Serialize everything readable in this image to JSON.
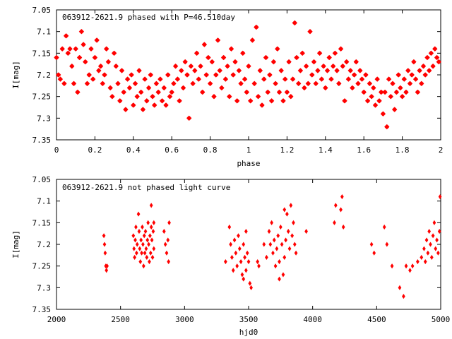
{
  "chart_data": [
    {
      "type": "scatter",
      "title": "063912-2621.9 phased with P=46.510day",
      "xlabel": "phase",
      "ylabel": "I[mag]",
      "xlim": [
        0,
        2
      ],
      "ylim": [
        7.35,
        7.05
      ],
      "y_inverted": true,
      "xticks": [
        "0",
        "0.2",
        "0.4",
        "0.6",
        "0.8",
        "1",
        "1.2",
        "1.4",
        "1.6",
        "1.8",
        "2"
      ],
      "yticks": [
        "7.05",
        "7.1",
        "7.15",
        "7.2",
        "7.25",
        "7.3",
        "7.35"
      ],
      "marker": "star",
      "color": "#ff0000",
      "points": [
        [
          0.0,
          7.16
        ],
        [
          0.01,
          7.2
        ],
        [
          0.02,
          7.21
        ],
        [
          0.03,
          7.14
        ],
        [
          0.04,
          7.22
        ],
        [
          0.05,
          7.11
        ],
        [
          0.06,
          7.15
        ],
        [
          0.07,
          7.14
        ],
        [
          0.08,
          7.18
        ],
        [
          0.09,
          7.22
        ],
        [
          0.1,
          7.14
        ],
        [
          0.11,
          7.24
        ],
        [
          0.12,
          7.16
        ],
        [
          0.13,
          7.1
        ],
        [
          0.14,
          7.13
        ],
        [
          0.15,
          7.17
        ],
        [
          0.16,
          7.22
        ],
        [
          0.17,
          7.2
        ],
        [
          0.18,
          7.14
        ],
        [
          0.19,
          7.21
        ],
        [
          0.2,
          7.16
        ],
        [
          0.21,
          7.12
        ],
        [
          0.22,
          7.19
        ],
        [
          0.23,
          7.18
        ],
        [
          0.24,
          7.22
        ],
        [
          0.25,
          7.2
        ],
        [
          0.26,
          7.14
        ],
        [
          0.27,
          7.17
        ],
        [
          0.28,
          7.23
        ],
        [
          0.29,
          7.25
        ],
        [
          0.3,
          7.15
        ],
        [
          0.31,
          7.18
        ],
        [
          0.32,
          7.22
        ],
        [
          0.33,
          7.26
        ],
        [
          0.34,
          7.19
        ],
        [
          0.35,
          7.24
        ],
        [
          0.36,
          7.28
        ],
        [
          0.37,
          7.21
        ],
        [
          0.38,
          7.23
        ],
        [
          0.39,
          7.2
        ],
        [
          0.4,
          7.27
        ],
        [
          0.41,
          7.22
        ],
        [
          0.42,
          7.25
        ],
        [
          0.43,
          7.19
        ],
        [
          0.44,
          7.24
        ],
        [
          0.45,
          7.28
        ],
        [
          0.46,
          7.21
        ],
        [
          0.47,
          7.26
        ],
        [
          0.48,
          7.23
        ],
        [
          0.49,
          7.2
        ],
        [
          0.5,
          7.25
        ],
        [
          0.51,
          7.27
        ],
        [
          0.52,
          7.22
        ],
        [
          0.53,
          7.24
        ],
        [
          0.54,
          7.21
        ],
        [
          0.55,
          7.26
        ],
        [
          0.56,
          7.23
        ],
        [
          0.57,
          7.27
        ],
        [
          0.58,
          7.2
        ],
        [
          0.59,
          7.25
        ],
        [
          0.6,
          7.24
        ],
        [
          0.61,
          7.22
        ],
        [
          0.62,
          7.18
        ],
        [
          0.63,
          7.21
        ],
        [
          0.64,
          7.26
        ],
        [
          0.65,
          7.19
        ],
        [
          0.66,
          7.23
        ],
        [
          0.67,
          7.17
        ],
        [
          0.68,
          7.2
        ],
        [
          0.69,
          7.3
        ],
        [
          0.7,
          7.18
        ],
        [
          0.71,
          7.22
        ],
        [
          0.72,
          7.19
        ],
        [
          0.73,
          7.15
        ],
        [
          0.74,
          7.21
        ],
        [
          0.75,
          7.18
        ],
        [
          0.76,
          7.24
        ],
        [
          0.77,
          7.13
        ],
        [
          0.78,
          7.2
        ],
        [
          0.79,
          7.16
        ],
        [
          0.8,
          7.22
        ],
        [
          0.81,
          7.17
        ],
        [
          0.82,
          7.25
        ],
        [
          0.83,
          7.2
        ],
        [
          0.84,
          7.12
        ],
        [
          0.85,
          7.19
        ],
        [
          0.86,
          7.23
        ],
        [
          0.87,
          7.16
        ],
        [
          0.88,
          7.21
        ],
        [
          0.89,
          7.18
        ],
        [
          0.9,
          7.25
        ],
        [
          0.91,
          7.14
        ],
        [
          0.92,
          7.2
        ],
        [
          0.93,
          7.17
        ],
        [
          0.94,
          7.26
        ],
        [
          0.95,
          7.19
        ],
        [
          0.96,
          7.22
        ],
        [
          0.97,
          7.15
        ],
        [
          0.98,
          7.21
        ],
        [
          0.99,
          7.24
        ],
        [
          1.0,
          7.18
        ],
        [
          1.01,
          7.26
        ],
        [
          1.02,
          7.12
        ],
        [
          1.03,
          7.22
        ],
        [
          1.04,
          7.09
        ],
        [
          1.05,
          7.25
        ],
        [
          1.06,
          7.19
        ],
        [
          1.07,
          7.27
        ],
        [
          1.08,
          7.21
        ],
        [
          1.09,
          7.16
        ],
        [
          1.1,
          7.24
        ],
        [
          1.11,
          7.2
        ],
        [
          1.12,
          7.26
        ],
        [
          1.13,
          7.17
        ],
        [
          1.14,
          7.22
        ],
        [
          1.15,
          7.14
        ],
        [
          1.16,
          7.24
        ],
        [
          1.17,
          7.19
        ],
        [
          1.18,
          7.26
        ],
        [
          1.19,
          7.21
        ],
        [
          1.2,
          7.24
        ],
        [
          1.21,
          7.17
        ],
        [
          1.22,
          7.25
        ],
        [
          1.23,
          7.21
        ],
        [
          1.24,
          7.08
        ],
        [
          1.25,
          7.16
        ],
        [
          1.26,
          7.22
        ],
        [
          1.27,
          7.19
        ],
        [
          1.28,
          7.15
        ],
        [
          1.29,
          7.23
        ],
        [
          1.3,
          7.18
        ],
        [
          1.31,
          7.22
        ],
        [
          1.32,
          7.1
        ],
        [
          1.33,
          7.2
        ],
        [
          1.34,
          7.17
        ],
        [
          1.35,
          7.22
        ],
        [
          1.36,
          7.19
        ],
        [
          1.37,
          7.15
        ],
        [
          1.38,
          7.21
        ],
        [
          1.39,
          7.18
        ],
        [
          1.4,
          7.23
        ],
        [
          1.41,
          7.19
        ],
        [
          1.42,
          7.16
        ],
        [
          1.43,
          7.21
        ],
        [
          1.44,
          7.18
        ],
        [
          1.45,
          7.15
        ],
        [
          1.46,
          7.19
        ],
        [
          1.47,
          7.22
        ],
        [
          1.48,
          7.14
        ],
        [
          1.49,
          7.18
        ],
        [
          1.5,
          7.26
        ],
        [
          1.51,
          7.17
        ],
        [
          1.52,
          7.21
        ],
        [
          1.53,
          7.19
        ],
        [
          1.54,
          7.23
        ],
        [
          1.55,
          7.2
        ],
        [
          1.56,
          7.17
        ],
        [
          1.57,
          7.22
        ],
        [
          1.58,
          7.19
        ],
        [
          1.59,
          7.21
        ],
        [
          1.6,
          7.24
        ],
        [
          1.61,
          7.2
        ],
        [
          1.62,
          7.26
        ],
        [
          1.63,
          7.22
        ],
        [
          1.64,
          7.25
        ],
        [
          1.65,
          7.23
        ],
        [
          1.66,
          7.27
        ],
        [
          1.67,
          7.21
        ],
        [
          1.68,
          7.26
        ],
        [
          1.69,
          7.24
        ],
        [
          1.7,
          7.29
        ],
        [
          1.71,
          7.24
        ],
        [
          1.72,
          7.32
        ],
        [
          1.73,
          7.21
        ],
        [
          1.74,
          7.25
        ],
        [
          1.75,
          7.22
        ],
        [
          1.76,
          7.28
        ],
        [
          1.77,
          7.24
        ],
        [
          1.78,
          7.2
        ],
        [
          1.79,
          7.23
        ],
        [
          1.8,
          7.25
        ],
        [
          1.81,
          7.21
        ],
        [
          1.82,
          7.24
        ],
        [
          1.83,
          7.19
        ],
        [
          1.84,
          7.22
        ],
        [
          1.85,
          7.2
        ],
        [
          1.86,
          7.17
        ],
        [
          1.87,
          7.21
        ],
        [
          1.88,
          7.24
        ],
        [
          1.89,
          7.19
        ],
        [
          1.9,
          7.22
        ],
        [
          1.91,
          7.18
        ],
        [
          1.92,
          7.2
        ],
        [
          1.93,
          7.16
        ],
        [
          1.94,
          7.19
        ],
        [
          1.95,
          7.15
        ],
        [
          1.96,
          7.18
        ],
        [
          1.97,
          7.14
        ],
        [
          1.98,
          7.16
        ],
        [
          1.99,
          7.17
        ]
      ]
    },
    {
      "type": "scatter",
      "title": "063912-2621.9 not phased light curve",
      "xlabel": "hjd0",
      "ylabel": "I[mag]",
      "xlim": [
        2000,
        5000
      ],
      "ylim": [
        7.35,
        7.05
      ],
      "y_inverted": true,
      "xticks": [
        "2000",
        "2500",
        "3000",
        "3500",
        "4000",
        "4500",
        "5000"
      ],
      "yticks": [
        "7.05",
        "7.1",
        "7.15",
        "7.2",
        "7.25",
        "7.3",
        "7.35"
      ],
      "marker": "diamond",
      "color": "#ff0000",
      "points": [
        [
          2370,
          7.18
        ],
        [
          2375,
          7.2
        ],
        [
          2380,
          7.22
        ],
        [
          2385,
          7.25
        ],
        [
          2390,
          7.26
        ],
        [
          2395,
          7.25
        ],
        [
          2600,
          7.18
        ],
        [
          2605,
          7.21
        ],
        [
          2610,
          7.23
        ],
        [
          2615,
          7.19
        ],
        [
          2620,
          7.16
        ],
        [
          2625,
          7.22
        ],
        [
          2630,
          7.2
        ],
        [
          2640,
          7.13
        ],
        [
          2645,
          7.17
        ],
        [
          2650,
          7.21
        ],
        [
          2655,
          7.24
        ],
        [
          2660,
          7.19
        ],
        [
          2665,
          7.22
        ],
        [
          2670,
          7.16
        ],
        [
          2675,
          7.2
        ],
        [
          2680,
          7.25
        ],
        [
          2685,
          7.18
        ],
        [
          2690,
          7.22
        ],
        [
          2695,
          7.17
        ],
        [
          2700,
          7.21
        ],
        [
          2705,
          7.23
        ],
        [
          2710,
          7.19
        ],
        [
          2715,
          7.15
        ],
        [
          2720,
          7.2
        ],
        [
          2725,
          7.24
        ],
        [
          2730,
          7.18
        ],
        [
          2735,
          7.22
        ],
        [
          2740,
          7.16
        ],
        [
          2745,
          7.19
        ],
        [
          2750,
          7.23
        ],
        [
          2755,
          7.17
        ],
        [
          2760,
          7.21
        ],
        [
          2740,
          7.11
        ],
        [
          2760,
          7.15
        ],
        [
          2840,
          7.17
        ],
        [
          2850,
          7.2
        ],
        [
          2860,
          7.22
        ],
        [
          2870,
          7.19
        ],
        [
          2875,
          7.24
        ],
        [
          2880,
          7.15
        ],
        [
          3320,
          7.24
        ],
        [
          3350,
          7.16
        ],
        [
          3360,
          7.2
        ],
        [
          3370,
          7.23
        ],
        [
          3380,
          7.26
        ],
        [
          3390,
          7.19
        ],
        [
          3400,
          7.22
        ],
        [
          3410,
          7.25
        ],
        [
          3420,
          7.18
        ],
        [
          3430,
          7.21
        ],
        [
          3440,
          7.24
        ],
        [
          3450,
          7.27
        ],
        [
          3460,
          7.2
        ],
        [
          3470,
          7.23
        ],
        [
          3480,
          7.26
        ],
        [
          3490,
          7.22
        ],
        [
          3500,
          7.24
        ],
        [
          3510,
          7.29
        ],
        [
          3520,
          7.3
        ],
        [
          3460,
          7.28
        ],
        [
          3480,
          7.17
        ],
        [
          3570,
          7.24
        ],
        [
          3580,
          7.25
        ],
        [
          3620,
          7.2
        ],
        [
          3640,
          7.23
        ],
        [
          3660,
          7.17
        ],
        [
          3670,
          7.2
        ],
        [
          3680,
          7.15
        ],
        [
          3690,
          7.22
        ],
        [
          3700,
          7.19
        ],
        [
          3710,
          7.25
        ],
        [
          3720,
          7.21
        ],
        [
          3730,
          7.18
        ],
        [
          3740,
          7.24
        ],
        [
          3750,
          7.16
        ],
        [
          3760,
          7.2
        ],
        [
          3770,
          7.27
        ],
        [
          3780,
          7.23
        ],
        [
          3790,
          7.19
        ],
        [
          3800,
          7.13
        ],
        [
          3810,
          7.17
        ],
        [
          3820,
          7.21
        ],
        [
          3830,
          7.11
        ],
        [
          3840,
          7.18
        ],
        [
          3850,
          7.15
        ],
        [
          3860,
          7.2
        ],
        [
          3870,
          7.22
        ],
        [
          3740,
          7.28
        ],
        [
          3780,
          7.12
        ],
        [
          3950,
          7.17
        ],
        [
          4170,
          7.15
        ],
        [
          4180,
          7.11
        ],
        [
          4220,
          7.12
        ],
        [
          4230,
          7.09
        ],
        [
          4240,
          7.16
        ],
        [
          4460,
          7.2
        ],
        [
          4480,
          7.22
        ],
        [
          4560,
          7.16
        ],
        [
          4580,
          7.2
        ],
        [
          4620,
          7.25
        ],
        [
          4680,
          7.3
        ],
        [
          4710,
          7.32
        ],
        [
          4730,
          7.25
        ],
        [
          4760,
          7.26
        ],
        [
          4780,
          7.25
        ],
        [
          4820,
          7.24
        ],
        [
          4850,
          7.23
        ],
        [
          4870,
          7.21
        ],
        [
          4880,
          7.24
        ],
        [
          4890,
          7.19
        ],
        [
          4900,
          7.22
        ],
        [
          4910,
          7.17
        ],
        [
          4920,
          7.2
        ],
        [
          4930,
          7.23
        ],
        [
          4940,
          7.18
        ],
        [
          4950,
          7.15
        ],
        [
          4960,
          7.21
        ],
        [
          4970,
          7.19
        ],
        [
          4980,
          7.22
        ],
        [
          4990,
          7.17
        ],
        [
          4995,
          7.09
        ]
      ]
    }
  ]
}
